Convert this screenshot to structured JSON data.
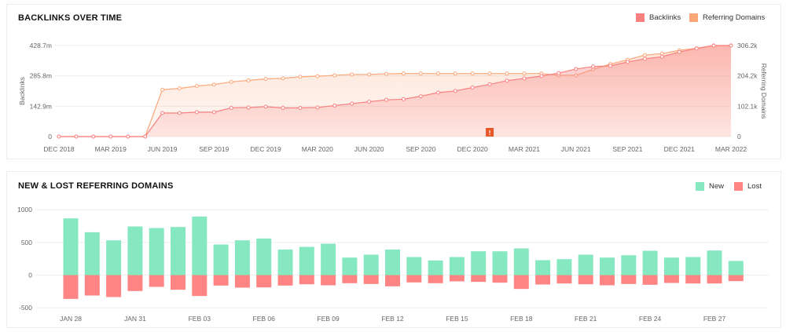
{
  "chart_data": [
    {
      "type": "area",
      "title": "BACKLINKS OVER TIME",
      "ylabel": "Backlinks",
      "y2label": "Referring Domains",
      "ylim": [
        0,
        428.7
      ],
      "y2lim": [
        0,
        306.2
      ],
      "yticks": [
        "0",
        "142.9m",
        "285.8m",
        "428.7m"
      ],
      "y2ticks": [
        "0",
        "102.1k",
        "204.2k",
        "306.2k"
      ],
      "xticks": [
        "DEC 2018",
        "MAR 2019",
        "JUN 2019",
        "SEP 2019",
        "DEC 2019",
        "MAR 2020",
        "JUN 2020",
        "SEP 2020",
        "DEC 2020",
        "MAR 2021",
        "JUN 2021",
        "SEP 2021",
        "DEC 2021",
        "MAR 2022"
      ],
      "x": [
        "2018-12",
        "2019-01",
        "2019-02",
        "2019-03",
        "2019-04",
        "2019-05",
        "2019-06",
        "2019-07",
        "2019-08",
        "2019-09",
        "2019-10",
        "2019-11",
        "2019-12",
        "2020-01",
        "2020-02",
        "2020-03",
        "2020-04",
        "2020-05",
        "2020-06",
        "2020-07",
        "2020-08",
        "2020-09",
        "2020-10",
        "2020-11",
        "2020-12",
        "2021-01",
        "2021-02",
        "2021-03",
        "2021-04",
        "2021-05",
        "2021-06",
        "2021-07",
        "2021-08",
        "2021-09",
        "2021-10",
        "2021-11",
        "2021-12",
        "2022-01",
        "2022-02",
        "2022-03"
      ],
      "series": [
        {
          "name": "Backlinks",
          "unit": "m",
          "axis": "left",
          "color": "#f98080",
          "values": [
            0,
            0,
            0,
            0,
            0,
            0,
            111,
            111,
            115,
            115,
            135,
            137,
            141,
            135,
            135,
            137,
            146,
            155,
            164,
            173,
            176,
            190,
            207,
            215,
            231,
            246,
            263,
            274,
            285,
            299,
            318,
            330,
            333,
            351,
            366,
            376,
            398,
            415,
            428.7,
            428.7
          ]
        },
        {
          "name": "Referring Domains",
          "unit": "k",
          "axis": "right",
          "color": "#fba77a",
          "values": [
            0,
            0,
            0,
            0,
            0,
            0,
            157.6,
            162,
            170,
            175,
            184,
            189,
            194,
            196,
            201,
            203,
            206,
            209,
            209,
            211,
            212,
            212,
            212,
            212,
            212,
            212,
            212,
            212,
            212,
            206,
            206,
            226,
            244,
            258,
            274,
            279,
            290,
            297,
            306.2,
            306.2
          ]
        }
      ],
      "annotation": {
        "x": "2021-01",
        "label": "!",
        "color": "#e8572a"
      },
      "legend": "top-right",
      "grid": true
    },
    {
      "type": "bar",
      "title": "NEW & LOST REFERRING DOMAINS",
      "ylim": [
        -500,
        1000
      ],
      "yticks": [
        "-500",
        "0",
        "500",
        "1000"
      ],
      "categories": [
        "JAN 28",
        "JAN 29",
        "JAN 30",
        "JAN 31",
        "FEB 01",
        "FEB 02",
        "FEB 03",
        "FEB 04",
        "FEB 05",
        "FEB 06",
        "FEB 07",
        "FEB 08",
        "FEB 09",
        "FEB 10",
        "FEB 11",
        "FEB 12",
        "FEB 13",
        "FEB 14",
        "FEB 15",
        "FEB 16",
        "FEB 17",
        "FEB 18",
        "FEB 19",
        "FEB 20",
        "FEB 21",
        "FEB 22",
        "FEB 23",
        "FEB 24",
        "FEB 25",
        "FEB 26",
        "FEB 27",
        "FEB 28"
      ],
      "xticks": [
        "JAN 28",
        "JAN 31",
        "FEB 03",
        "FEB 06",
        "FEB 09",
        "FEB 12",
        "FEB 15",
        "FEB 18",
        "FEB 21",
        "FEB 24",
        "FEB 27"
      ],
      "series": [
        {
          "name": "New",
          "color": "#86e8c0",
          "values": [
            868,
            656,
            532,
            744,
            720,
            736,
            896,
            468,
            532,
            560,
            392,
            432,
            480,
            268,
            312,
            392,
            276,
            224,
            276,
            364,
            364,
            408,
            228,
            244,
            312,
            268,
            304,
            372,
            268,
            276,
            376,
            216
          ]
        },
        {
          "name": "Lost",
          "color": "#ff8585",
          "values": [
            -364,
            -312,
            -336,
            -244,
            -180,
            -224,
            -320,
            -160,
            -192,
            -188,
            -160,
            -140,
            -156,
            -124,
            -136,
            -172,
            -112,
            -124,
            -96,
            -104,
            -116,
            -212,
            -144,
            -128,
            -140,
            -156,
            -136,
            -148,
            -120,
            -128,
            -128,
            -92
          ]
        }
      ],
      "legend": "top-right",
      "grid": true
    }
  ]
}
